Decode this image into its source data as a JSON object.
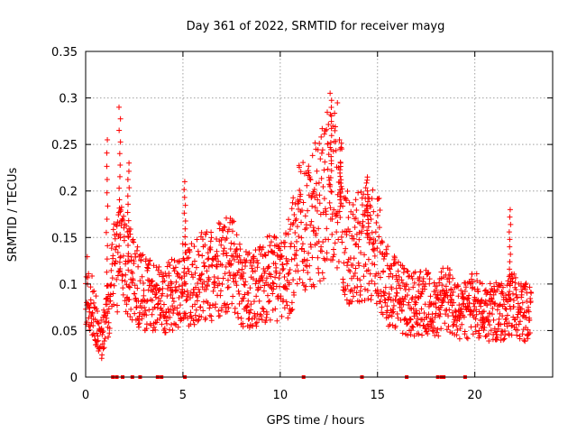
{
  "chart_data": {
    "type": "scatter",
    "title": "Day 361 of 2022, SRMTID for receiver mayg",
    "xlabel": "GPS time / hours",
    "ylabel": "SRMTID / TECUs",
    "xlim": [
      0,
      24
    ],
    "ylim": [
      0,
      0.35
    ],
    "xticks": [
      0,
      5,
      10,
      15,
      20
    ],
    "yticks": [
      0,
      0.05,
      0.1,
      0.15,
      0.2,
      0.25,
      0.3,
      0.35
    ],
    "xtick_labels": [
      "0",
      "5",
      "10",
      "15",
      "20"
    ],
    "ytick_labels": [
      "0",
      "0.05",
      "0.1",
      "0.15",
      "0.2",
      "0.25",
      "0.3",
      "0.35"
    ],
    "grid": true,
    "marker": "+",
    "color": "#ff0000",
    "envelope": {
      "x": [
        0.0,
        0.4,
        0.8,
        1.2,
        1.5,
        1.8,
        2.1,
        2.5,
        3.0,
        3.5,
        4.0,
        4.5,
        5.0,
        5.5,
        6.0,
        6.5,
        7.0,
        7.5,
        8.0,
        8.5,
        9.0,
        9.5,
        10.0,
        10.5,
        11.0,
        11.5,
        12.0,
        12.5,
        12.8,
        13.0,
        13.3,
        13.6,
        14.0,
        14.5,
        15.0,
        15.5,
        16.0,
        16.5,
        17.0,
        17.5,
        18.0,
        18.5,
        19.0,
        19.5,
        20.0,
        20.5,
        21.0,
        21.5,
        22.0,
        22.5,
        22.9
      ],
      "y": [
        0.1,
        0.07,
        0.04,
        0.08,
        0.12,
        0.13,
        0.12,
        0.1,
        0.09,
        0.09,
        0.08,
        0.09,
        0.1,
        0.1,
        0.11,
        0.11,
        0.12,
        0.12,
        0.1,
        0.09,
        0.1,
        0.11,
        0.1,
        0.12,
        0.16,
        0.17,
        0.18,
        0.2,
        0.22,
        0.2,
        0.15,
        0.13,
        0.14,
        0.15,
        0.14,
        0.1,
        0.09,
        0.08,
        0.08,
        0.08,
        0.07,
        0.09,
        0.07,
        0.07,
        0.08,
        0.07,
        0.07,
        0.07,
        0.08,
        0.07,
        0.07
      ]
    },
    "spikes": [
      {
        "x": 1.1,
        "y": 0.255
      },
      {
        "x": 1.75,
        "y": 0.29
      },
      {
        "x": 2.2,
        "y": 0.23
      },
      {
        "x": 5.1,
        "y": 0.21
      },
      {
        "x": 12.6,
        "y": 0.305
      },
      {
        "x": 13.1,
        "y": 0.23
      },
      {
        "x": 14.5,
        "y": 0.2
      },
      {
        "x": 21.8,
        "y": 0.18
      }
    ],
    "zero_markers_x": [
      1.4,
      1.6,
      1.9,
      2.4,
      2.8,
      3.7,
      3.9,
      5.1,
      11.2,
      14.2,
      16.5,
      18.1,
      18.3,
      18.4,
      19.5
    ]
  }
}
